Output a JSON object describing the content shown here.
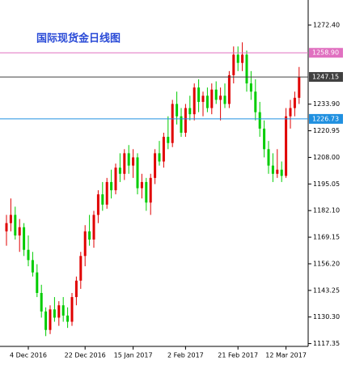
{
  "chart_data": {
    "type": "candlestick",
    "title": "国际现货金日线图",
    "categories": [
      null,
      null,
      null,
      null,
      null,
      "4 Dec 2016",
      null,
      null,
      null,
      null,
      null,
      null,
      null,
      null,
      null,
      null,
      null,
      null,
      "22 Dec 2016",
      null,
      null,
      null,
      null,
      null,
      null,
      null,
      null,
      null,
      null,
      "15 Jan 2017",
      null,
      null,
      null,
      null,
      null,
      null,
      null,
      null,
      null,
      null,
      null,
      "2 Feb 2017",
      null,
      null,
      null,
      null,
      null,
      null,
      null,
      null,
      null,
      null,
      null,
      "21 Feb 2017",
      null,
      null,
      null,
      null,
      null,
      null,
      null,
      null,
      null,
      null,
      "12 Mar 2017",
      null,
      null,
      null
    ],
    "open": [
      1172,
      1176,
      1180,
      1170,
      1174,
      1163,
      1158,
      1152,
      1142,
      1133,
      1124,
      1134,
      1130,
      1136,
      1131,
      1128,
      1140,
      1148,
      1160,
      1172,
      1168,
      1180,
      1190,
      1185,
      1196,
      1192,
      1203,
      1200,
      1210,
      1204,
      1208,
      1193,
      1196,
      1186,
      1198,
      1210,
      1206,
      1218,
      1215,
      1234,
      1228,
      1220,
      1232,
      1229,
      1242,
      1235,
      1238,
      1232,
      1241,
      1236,
      1238,
      1234,
      1248,
      1258,
      1254,
      1258,
      1244,
      1240,
      1230,
      1222,
      1212,
      1204,
      1200,
      1202,
      1199,
      1228,
      1232,
      1237
    ],
    "high": [
      1180,
      1188,
      1184,
      1178,
      1176,
      1170,
      1162,
      1156,
      1146,
      1135,
      1136,
      1140,
      1138,
      1140,
      1135,
      1142,
      1150,
      1162,
      1175,
      1180,
      1182,
      1192,
      1196,
      1198,
      1202,
      1205,
      1210,
      1212,
      1214,
      1212,
      1210,
      1200,
      1198,
      1200,
      1212,
      1216,
      1220,
      1228,
      1236,
      1240,
      1232,
      1234,
      1238,
      1244,
      1246,
      1240,
      1242,
      1244,
      1245,
      1242,
      1244,
      1250,
      1262,
      1262,
      1264,
      1260,
      1250,
      1246,
      1235,
      1226,
      1216,
      1210,
      1212,
      1206,
      1232,
      1236,
      1240,
      1252
    ],
    "low": [
      1165,
      1172,
      1168,
      1162,
      1160,
      1155,
      1150,
      1140,
      1130,
      1121,
      1122,
      1128,
      1126,
      1128,
      1125,
      1126,
      1136,
      1144,
      1155,
      1165,
      1164,
      1176,
      1182,
      1183,
      1188,
      1190,
      1196,
      1197,
      1200,
      1198,
      1190,
      1188,
      1182,
      1180,
      1195,
      1204,
      1203,
      1212,
      1213,
      1224,
      1218,
      1218,
      1226,
      1226,
      1230,
      1228,
      1230,
      1229,
      1234,
      1226,
      1232,
      1232,
      1244,
      1250,
      1250,
      1240,
      1236,
      1226,
      1218,
      1208,
      1200,
      1196,
      1198,
      1196,
      1198,
      1222,
      1228,
      1234
    ],
    "close": [
      1176,
      1180,
      1170,
      1174,
      1163,
      1158,
      1152,
      1142,
      1133,
      1124,
      1134,
      1130,
      1136,
      1131,
      1128,
      1140,
      1148,
      1160,
      1172,
      1168,
      1180,
      1190,
      1185,
      1196,
      1192,
      1203,
      1200,
      1210,
      1204,
      1208,
      1193,
      1196,
      1186,
      1198,
      1210,
      1206,
      1218,
      1215,
      1234,
      1228,
      1220,
      1232,
      1229,
      1242,
      1235,
      1238,
      1232,
      1241,
      1236,
      1238,
      1234,
      1248,
      1258,
      1254,
      1258,
      1244,
      1240,
      1230,
      1222,
      1212,
      1204,
      1200,
      1202,
      1199,
      1228,
      1232,
      1237,
      1247
    ],
    "up_color": "#e00000",
    "down_color": "#00cc00",
    "ylim": [
      1116,
      1284.6
    ],
    "yticks": [
      {
        "value": 1117.35,
        "label": "1117.35"
      },
      {
        "value": 1130.3,
        "label": "1130.30"
      },
      {
        "value": 1143.25,
        "label": "1143.25"
      },
      {
        "value": 1156.2,
        "label": "1156.20"
      },
      {
        "value": 1169.15,
        "label": "1169.15"
      },
      {
        "value": 1182.1,
        "label": "1182.10"
      },
      {
        "value": 1195.05,
        "label": "1195.05"
      },
      {
        "value": 1208,
        "label": "1208.00"
      },
      {
        "value": 1220.95,
        "label": "1220.95"
      },
      {
        "value": 1233.9,
        "label": "1233.90"
      },
      {
        "value": 1272.4,
        "label": "1272.40"
      }
    ],
    "levels": [
      {
        "value": 1258.9,
        "label": "1258.90",
        "color": "#e070c0"
      },
      {
        "value": 1247.15,
        "label": "1247.15",
        "color": "#404040"
      },
      {
        "value": 1226.73,
        "label": "1226.73",
        "color": "#2090e0"
      }
    ]
  }
}
